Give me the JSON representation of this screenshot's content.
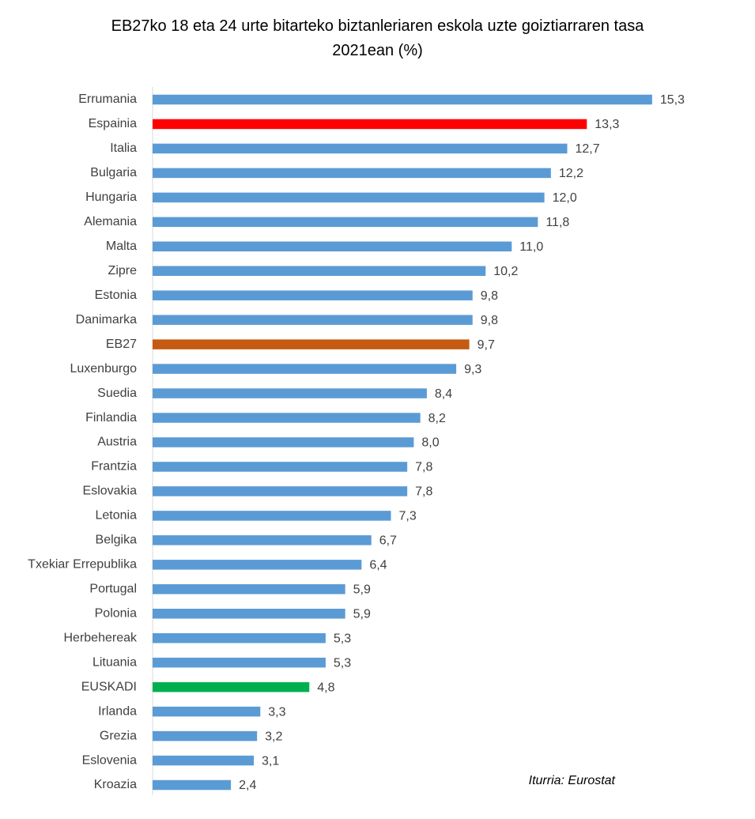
{
  "chart_data": {
    "type": "hbar",
    "title": "EB27ko 18 eta 24 urte bitarteko biztanleriaren eskola uzte goiztiarraren tasa 2021ean (%)",
    "annotation": "Iturria: Eurostat",
    "categories": [
      "Errumania",
      "Espainia",
      "Italia",
      "Bulgaria",
      "Hungaria",
      "Alemania",
      "Malta",
      "Zipre",
      "Estonia",
      "Danimarka",
      "EB27",
      "Luxenburgo",
      "Suedia",
      "Finlandia",
      "Austria",
      "Frantzia",
      "Eslovakia",
      "Letonia",
      "Belgika",
      "Txekiar Errepublika",
      "Portugal",
      "Polonia",
      "Herbehereak",
      "Lituania",
      "EUSKADI",
      "Irlanda",
      "Grezia",
      "Eslovenia",
      "Kroazia"
    ],
    "values": [
      15.3,
      13.3,
      12.7,
      12.2,
      12.0,
      11.8,
      11.0,
      10.2,
      9.8,
      9.8,
      9.7,
      9.3,
      8.4,
      8.2,
      8.0,
      7.8,
      7.8,
      7.3,
      6.7,
      6.4,
      5.9,
      5.9,
      5.3,
      5.3,
      4.8,
      3.3,
      3.2,
      3.1,
      2.4
    ],
    "value_labels": [
      "15,3",
      "13,3",
      "12,7",
      "12,2",
      "12,0",
      "11,8",
      "11,0",
      "10,2",
      "9,8",
      "9,8",
      "9,7",
      "9,3",
      "8,4",
      "8,2",
      "8,0",
      "7,8",
      "7,8",
      "7,3",
      "6,7",
      "6,4",
      "5,9",
      "5,9",
      "5,3",
      "5,3",
      "4,8",
      "3,3",
      "3,2",
      "3,1",
      "2,4"
    ],
    "colors": [
      "#5b9bd5",
      "#ff0000",
      "#5b9bd5",
      "#5b9bd5",
      "#5b9bd5",
      "#5b9bd5",
      "#5b9bd5",
      "#5b9bd5",
      "#5b9bd5",
      "#5b9bd5",
      "#c55a11",
      "#5b9bd5",
      "#5b9bd5",
      "#5b9bd5",
      "#5b9bd5",
      "#5b9bd5",
      "#5b9bd5",
      "#5b9bd5",
      "#5b9bd5",
      "#5b9bd5",
      "#5b9bd5",
      "#5b9bd5",
      "#5b9bd5",
      "#5b9bd5",
      "#00b050",
      "#5b9bd5",
      "#5b9bd5",
      "#5b9bd5",
      "#5b9bd5"
    ]
  }
}
